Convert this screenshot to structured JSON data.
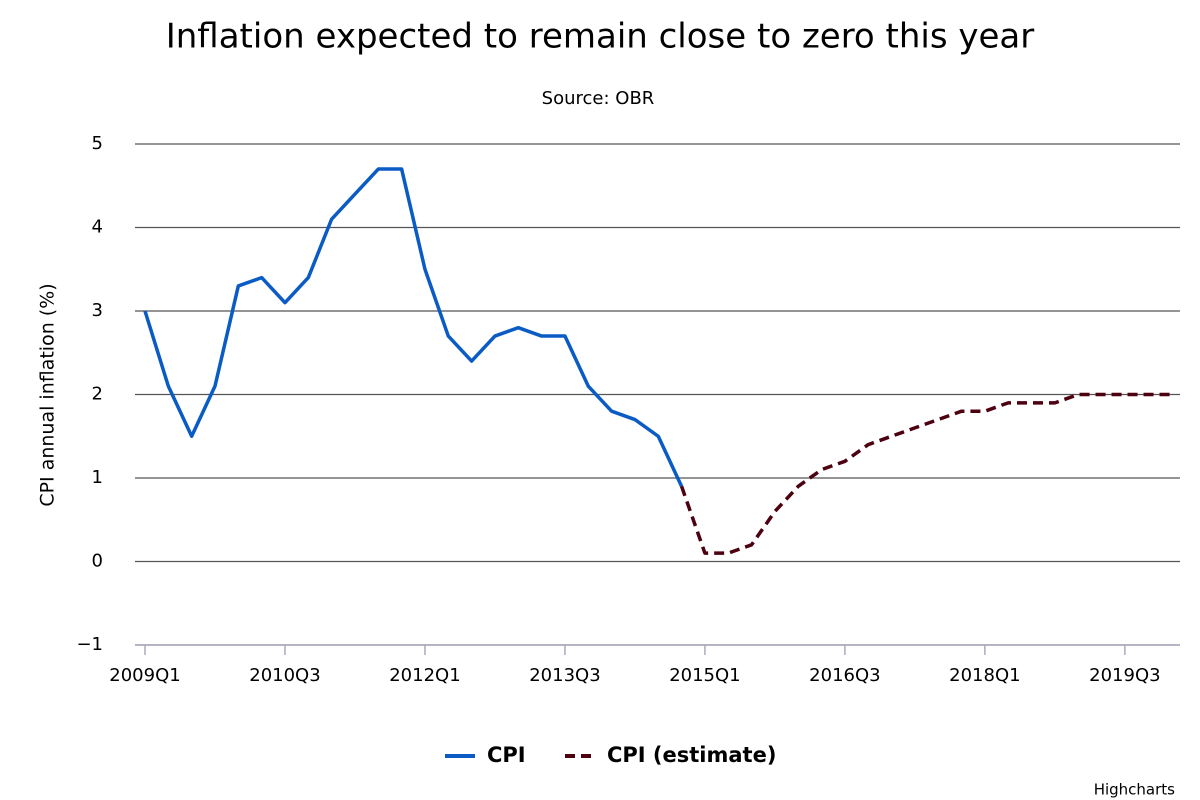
{
  "chart_data": {
    "type": "line",
    "title": "Inflation expected to remain close to zero this year",
    "subtitle": "Source: OBR",
    "y_axis_label": "CPI annual inflation (%)",
    "credits": "Highcharts",
    "categories": [
      "2009Q1",
      null,
      null,
      null,
      null,
      null,
      "2010Q3",
      null,
      null,
      null,
      null,
      null,
      "2012Q1",
      null,
      null,
      null,
      null,
      null,
      "2013Q3",
      null,
      null,
      null,
      null,
      null,
      "2015Q1",
      null,
      null,
      null,
      null,
      null,
      "2016Q3",
      null,
      null,
      null,
      null,
      null,
      "2018Q1",
      null,
      null,
      null,
      null,
      null,
      "2019Q3",
      null,
      null
    ],
    "series": [
      {
        "name": "CPI",
        "color": "#0b5bc5",
        "dashed": false,
        "values": [
          3.0,
          2.1,
          1.5,
          2.1,
          3.3,
          3.4,
          3.1,
          3.4,
          4.1,
          4.4,
          4.7,
          4.7,
          3.5,
          2.7,
          2.4,
          2.7,
          2.8,
          2.7,
          2.7,
          2.1,
          1.8,
          1.7,
          1.5,
          0.9,
          null,
          null,
          null,
          null,
          null,
          null,
          null,
          null,
          null,
          null,
          null,
          null,
          null,
          null,
          null,
          null,
          null,
          null,
          null,
          null,
          null
        ]
      },
      {
        "name": "CPI (estimate)",
        "color": "#4d0010",
        "dashed": true,
        "values": [
          null,
          null,
          null,
          null,
          null,
          null,
          null,
          null,
          null,
          null,
          null,
          null,
          null,
          null,
          null,
          null,
          null,
          null,
          null,
          null,
          null,
          null,
          null,
          0.9,
          0.1,
          0.1,
          0.2,
          0.6,
          0.9,
          1.1,
          1.2,
          1.4,
          1.5,
          1.6,
          1.7,
          1.8,
          1.8,
          1.9,
          1.9,
          1.9,
          2.0,
          2.0,
          2.0,
          2.0,
          2.0
        ]
      }
    ],
    "ylim": [
      -1,
      5
    ],
    "yticks": [
      {
        "value": -1,
        "label": "−1"
      },
      0,
      1,
      2,
      3,
      4,
      5
    ],
    "grid": true,
    "legend": "bottom"
  }
}
